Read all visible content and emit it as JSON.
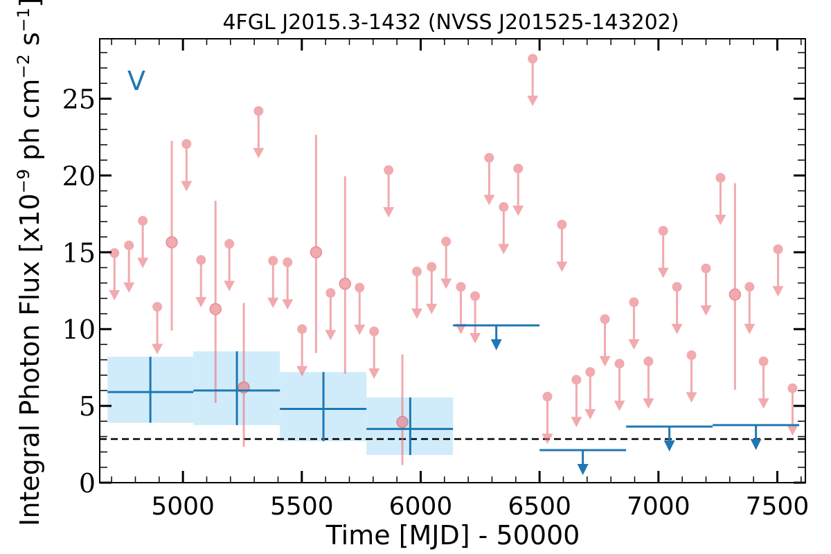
{
  "chart_data": {
    "type": "scatter",
    "title": "4FGL J2015.3-1432 (NVSS J201525-143202)",
    "xlabel": "Time [MJD] - 50000",
    "ylabel": "Integral Photon Flux [x10^-9 ph cm^-2 s^-1]",
    "ylabel_parts": {
      "main": "Integral Photon Flux [x10",
      "exp1": "−9",
      "mid": " ph cm",
      "exp2": "−2",
      "mid2": " s",
      "exp3": "−1",
      "end": "]"
    },
    "xlim": [
      4650,
      7618
    ],
    "ylim": [
      0,
      28.9
    ],
    "xticks": [
      5000,
      5500,
      6000,
      6500,
      7000,
      7500
    ],
    "xtick_labels": [
      "5000",
      "5500",
      "6000",
      "6500",
      "7000",
      "7500"
    ],
    "yticks": [
      0,
      5,
      10,
      15,
      20,
      25
    ],
    "ytick_labels": [
      "0",
      "5",
      "10",
      "15",
      "20",
      "25"
    ],
    "band_label": "V",
    "grid": false,
    "colors": {
      "short_bins": "#e8737a",
      "long_bins": "#1f77b4",
      "long_bin_box": "#cdebfb",
      "threshold_line": "#000000"
    },
    "threshold": 2.84,
    "short_bins_detections": [
      {
        "x": 4953,
        "y": 15.65,
        "ylo": 9.9,
        "yhi": 22.25
      },
      {
        "x": 5137,
        "y": 11.3,
        "ylo": 5.2,
        "yhi": 18.35
      },
      {
        "x": 5256,
        "y": 6.2,
        "ylo": 2.35,
        "yhi": 11.7
      },
      {
        "x": 5560,
        "y": 15.0,
        "ylo": 8.45,
        "yhi": 22.65
      },
      {
        "x": 5682,
        "y": 12.95,
        "ylo": 7.1,
        "yhi": 19.95
      },
      {
        "x": 5923,
        "y": 3.95,
        "ylo": 1.15,
        "yhi": 8.35
      },
      {
        "x": 7322,
        "y": 12.25,
        "ylo": 6.05,
        "yhi": 19.5
      }
    ],
    "short_bins_upper_limits": [
      {
        "x": 4712,
        "y": 14.95
      },
      {
        "x": 4773,
        "y": 15.45
      },
      {
        "x": 4831,
        "y": 17.05
      },
      {
        "x": 4892,
        "y": 11.45
      },
      {
        "x": 5015,
        "y": 22.05
      },
      {
        "x": 5076,
        "y": 14.5
      },
      {
        "x": 5195,
        "y": 15.55
      },
      {
        "x": 5318,
        "y": 24.2
      },
      {
        "x": 5379,
        "y": 14.45
      },
      {
        "x": 5440,
        "y": 14.35
      },
      {
        "x": 5501,
        "y": 10.0
      },
      {
        "x": 5621,
        "y": 12.35
      },
      {
        "x": 5743,
        "y": 12.7
      },
      {
        "x": 5804,
        "y": 9.85
      },
      {
        "x": 5865,
        "y": 20.35
      },
      {
        "x": 5984,
        "y": 13.75
      },
      {
        "x": 6046,
        "y": 14.05
      },
      {
        "x": 6107,
        "y": 15.7
      },
      {
        "x": 6169,
        "y": 12.75
      },
      {
        "x": 6229,
        "y": 12.15
      },
      {
        "x": 6288,
        "y": 21.15
      },
      {
        "x": 6349,
        "y": 17.95
      },
      {
        "x": 6410,
        "y": 20.45
      },
      {
        "x": 6471,
        "y": 27.6
      },
      {
        "x": 6533,
        "y": 5.6
      },
      {
        "x": 6594,
        "y": 16.8
      },
      {
        "x": 6655,
        "y": 6.7
      },
      {
        "x": 6713,
        "y": 7.2
      },
      {
        "x": 6775,
        "y": 10.65
      },
      {
        "x": 6836,
        "y": 7.75
      },
      {
        "x": 6897,
        "y": 11.75
      },
      {
        "x": 6958,
        "y": 7.9
      },
      {
        "x": 7020,
        "y": 16.4
      },
      {
        "x": 7078,
        "y": 12.75
      },
      {
        "x": 7139,
        "y": 8.3
      },
      {
        "x": 7200,
        "y": 13.95
      },
      {
        "x": 7261,
        "y": 19.85
      },
      {
        "x": 7383,
        "y": 12.75
      },
      {
        "x": 7442,
        "y": 7.9
      },
      {
        "x": 7503,
        "y": 15.2
      },
      {
        "x": 7564,
        "y": 6.15
      }
    ],
    "long_bins_detections": [
      {
        "x0": 4683,
        "x1": 5044,
        "xc": 4863,
        "y": 5.9,
        "ylo": 3.9,
        "yhi": 8.2
      },
      {
        "x0": 5044,
        "x1": 5408,
        "xc": 5227,
        "y": 6.0,
        "ylo": 3.75,
        "yhi": 8.55
      },
      {
        "x0": 5408,
        "x1": 5772,
        "xc": 5591,
        "y": 4.8,
        "ylo": 2.7,
        "yhi": 7.2
      },
      {
        "x0": 5772,
        "x1": 6136,
        "xc": 5956,
        "y": 3.5,
        "ylo": 1.8,
        "yhi": 5.55
      }
    ],
    "long_bins_upper_limits": [
      {
        "x0": 6136,
        "x1": 6500,
        "xc": 6318,
        "y": 10.24
      },
      {
        "x0": 6500,
        "x1": 6864,
        "xc": 6682,
        "y": 2.12
      },
      {
        "x0": 6864,
        "x1": 7228,
        "xc": 7046,
        "y": 3.65
      },
      {
        "x0": 7228,
        "x1": 7592,
        "xc": 7410,
        "y": 3.75
      }
    ]
  }
}
